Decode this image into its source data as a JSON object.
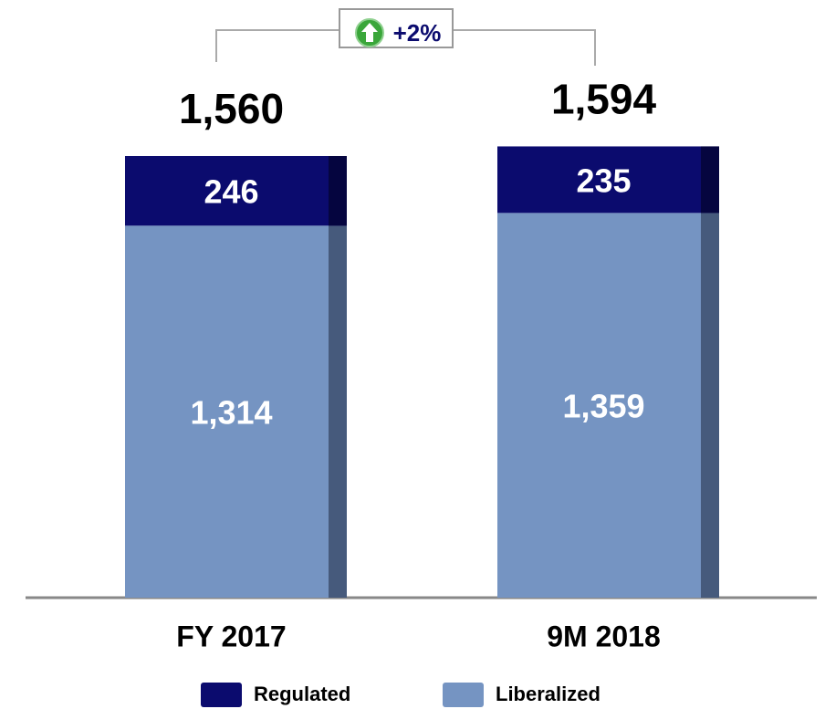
{
  "chart_data": {
    "type": "stacked_bar",
    "categories": [
      "FY 2017",
      "9M 2018"
    ],
    "series": [
      {
        "name": "Regulated",
        "color": "#0b0b6e",
        "values": [
          246,
          235
        ],
        "value_labels": [
          "246",
          "235"
        ]
      },
      {
        "name": "Liberalized",
        "color": "#7594c2",
        "values": [
          1314,
          1359
        ],
        "value_labels": [
          "1,314",
          "1,359"
        ]
      }
    ],
    "totals": {
      "values": [
        1560,
        1594
      ],
      "value_labels": [
        "1,560",
        "1,594"
      ]
    },
    "annotation": "+2%"
  }
}
